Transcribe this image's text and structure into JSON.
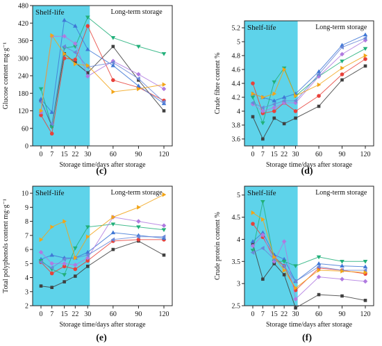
{
  "figure": {
    "shelf_label": "Shelf-life",
    "long_label": "Long-term storage",
    "xlabel": "Storage time/days after storage",
    "shelf_color": "#5ed3ea"
  },
  "series_styles": [
    {
      "color": "#404040",
      "marker": "square"
    },
    {
      "color": "#e8413a",
      "marker": "circle"
    },
    {
      "color": "#3f78d6",
      "marker": "triangle-up"
    },
    {
      "color": "#22b07a",
      "marker": "triangle-down"
    },
    {
      "color": "#b07ae0",
      "marker": "diamond"
    },
    {
      "color": "#6b88d8",
      "marker": "triangle-left"
    },
    {
      "color": "#f2a517",
      "marker": "triangle-right"
    }
  ],
  "chart_data": [
    {
      "type": "line",
      "panel_label": "(c)",
      "ylabel": "Glucose content mg·g⁻¹",
      "ylim": [
        0,
        480
      ],
      "yticks": [
        0,
        60,
        120,
        180,
        240,
        300,
        360,
        420,
        480
      ],
      "x": [
        0,
        7,
        15,
        22,
        30,
        60,
        90,
        120
      ],
      "xticks": [
        0,
        7,
        15,
        22,
        30,
        60,
        90,
        120
      ],
      "series": [
        {
          "values": [
            155,
            68,
            315,
            285,
            250,
            340,
            225,
            120
          ]
        },
        {
          "values": [
            105,
            42,
            300,
            295,
            410,
            225,
            200,
            155
          ]
        },
        {
          "values": [
            160,
            115,
            430,
            410,
            330,
            275,
            205,
            145
          ]
        },
        {
          "values": [
            195,
            65,
            335,
            340,
            440,
            370,
            340,
            315
          ]
        },
        {
          "values": [
            115,
            375,
            375,
            350,
            238,
            290,
            245,
            195
          ]
        },
        {
          "values": [
            150,
            75,
            340,
            320,
            270,
            285,
            230,
            150
          ]
        },
        {
          "values": [
            120,
            378,
            315,
            280,
            275,
            185,
            195,
            210
          ]
        }
      ]
    },
    {
      "type": "line",
      "panel_label": "(d)",
      "ylabel": "Crude fibre content %",
      "ylim": [
        3.5,
        5.3
      ],
      "yticks": [
        3.6,
        3.8,
        4.0,
        4.2,
        4.4,
        4.6,
        4.8,
        5.0,
        5.2
      ],
      "x": [
        0,
        7,
        15,
        22,
        30,
        60,
        90,
        120
      ],
      "xticks": [
        0,
        7,
        15,
        22,
        30,
        60,
        90,
        120
      ],
      "series": [
        {
          "values": [
            3.92,
            3.6,
            3.9,
            3.82,
            3.9,
            4.07,
            4.45,
            4.65
          ]
        },
        {
          "values": [
            4.4,
            3.97,
            4.0,
            4.12,
            4.0,
            4.22,
            4.53,
            4.75
          ]
        },
        {
          "values": [
            4.25,
            4.2,
            4.15,
            4.2,
            4.25,
            4.57,
            4.95,
            5.1
          ]
        },
        {
          "values": [
            4.2,
            3.83,
            4.42,
            4.62,
            4.22,
            4.5,
            4.72,
            4.9
          ]
        },
        {
          "values": [
            4.1,
            4.0,
            4.05,
            4.12,
            4.12,
            4.5,
            4.82,
            5.02
          ]
        },
        {
          "values": [
            4.12,
            4.05,
            4.1,
            4.15,
            4.15,
            4.53,
            4.92,
            5.05
          ]
        },
        {
          "values": [
            4.25,
            4.2,
            4.25,
            4.6,
            4.22,
            4.38,
            4.62,
            4.8
          ]
        }
      ]
    },
    {
      "type": "line",
      "panel_label": "(e)",
      "ylabel": "Total polyphenols content  mg·g⁻¹",
      "ylim": [
        2,
        10.5
      ],
      "yticks": [
        2,
        3,
        4,
        5,
        6,
        7,
        8,
        9,
        10
      ],
      "x": [
        0,
        7,
        15,
        22,
        30,
        60,
        90,
        120
      ],
      "xticks": [
        0,
        7,
        15,
        22,
        30,
        60,
        90,
        120
      ],
      "series": [
        {
          "values": [
            3.4,
            3.3,
            3.7,
            4.1,
            4.8,
            6.0,
            6.6,
            5.6
          ]
        },
        {
          "values": [
            5.1,
            4.3,
            4.8,
            4.6,
            5.2,
            6.6,
            6.7,
            6.7
          ]
        },
        {
          "values": [
            5.3,
            5.6,
            5.4,
            5.4,
            5.8,
            7.2,
            7.0,
            6.8
          ]
        },
        {
          "values": [
            5.2,
            4.6,
            4.2,
            6.1,
            7.6,
            7.8,
            7.6,
            7.4
          ]
        },
        {
          "values": [
            5.8,
            5.0,
            5.0,
            4.9,
            5.4,
            8.3,
            8.0,
            7.7
          ]
        },
        {
          "values": [
            5.1,
            4.7,
            5.3,
            5.4,
            5.6,
            6.7,
            6.9,
            6.9
          ]
        },
        {
          "values": [
            6.7,
            7.6,
            8.0,
            5.4,
            6.9,
            8.3,
            9.0,
            9.9
          ]
        }
      ]
    },
    {
      "type": "line",
      "panel_label": "(f)",
      "ylabel": "Crude protein content %",
      "ylim": [
        2.5,
        5.2
      ],
      "yticks": [
        2.5,
        3.0,
        3.5,
        4.0,
        4.5,
        5.0
      ],
      "x": [
        0,
        7,
        15,
        22,
        30,
        60,
        90,
        120
      ],
      "xticks": [
        0,
        7,
        15,
        22,
        30,
        60,
        90,
        120
      ],
      "series": [
        {
          "values": [
            3.9,
            3.1,
            3.45,
            3.2,
            2.45,
            2.75,
            2.72,
            2.62
          ]
        },
        {
          "values": [
            4.35,
            4.05,
            3.6,
            3.4,
            2.85,
            3.35,
            3.3,
            3.22
          ]
        },
        {
          "values": [
            3.95,
            4.15,
            3.65,
            3.55,
            3.05,
            3.45,
            3.4,
            3.38
          ]
        },
        {
          "values": [
            3.75,
            4.85,
            3.5,
            3.5,
            3.4,
            3.6,
            3.5,
            3.5
          ]
        },
        {
          "values": [
            3.85,
            4.1,
            3.5,
            3.95,
            2.65,
            3.15,
            3.1,
            3.05
          ]
        },
        {
          "values": [
            3.7,
            3.8,
            3.55,
            3.4,
            3.05,
            3.38,
            3.3,
            3.3
          ]
        },
        {
          "values": [
            4.6,
            4.45,
            3.6,
            3.3,
            2.9,
            3.3,
            3.28,
            3.25
          ]
        }
      ]
    }
  ]
}
